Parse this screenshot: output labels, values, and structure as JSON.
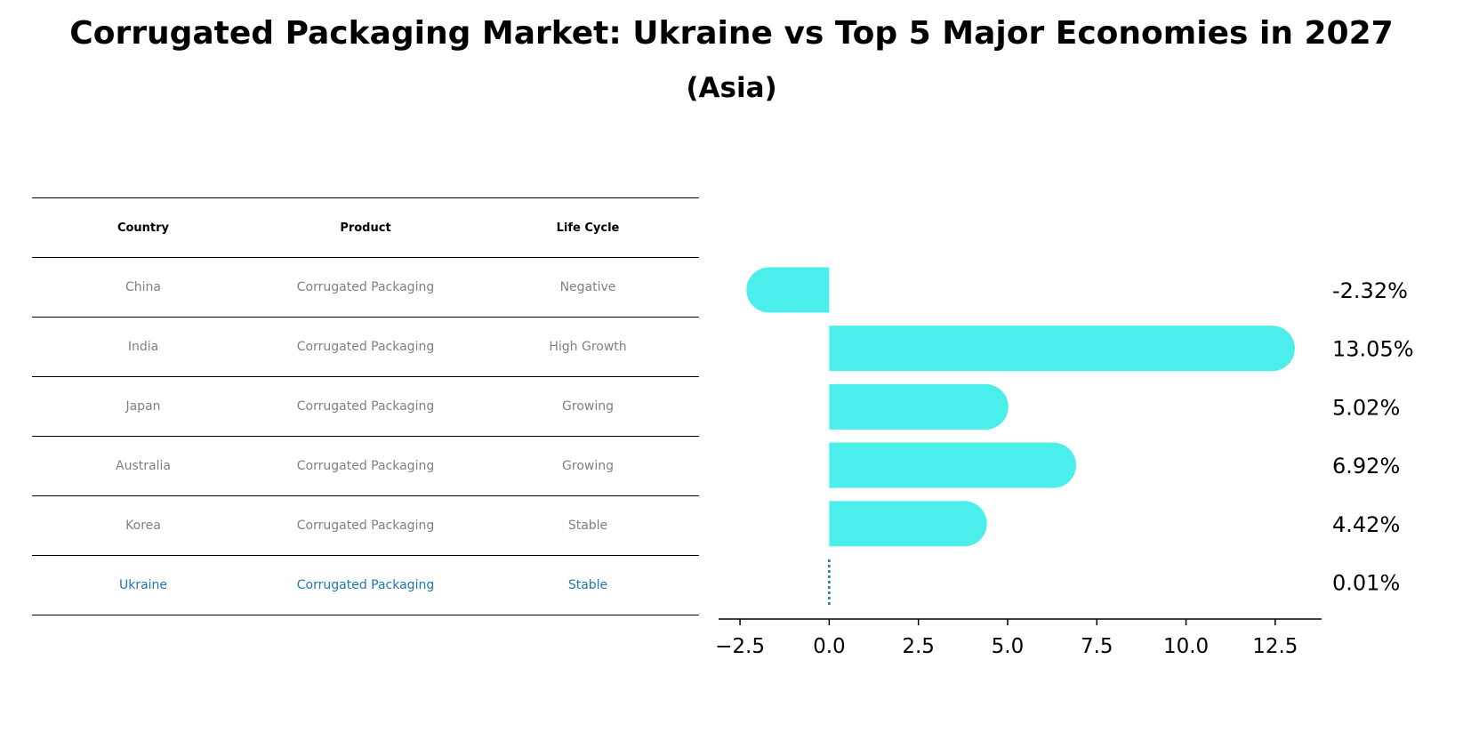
{
  "title": "Corrugated Packaging Market: Ukraine vs Top 5 Major Economies in 2027",
  "subtitle": "(Asia)",
  "colors": {
    "bar": "#4beeea",
    "highlight": "#1f77b4",
    "muted_text": "#808080"
  },
  "table": {
    "headers": [
      "Country",
      "Product",
      "Life Cycle"
    ],
    "rows": [
      [
        "China",
        "Corrugated Packaging",
        "Negative"
      ],
      [
        "India",
        "Corrugated Packaging",
        "High Growth"
      ],
      [
        "Japan",
        "Corrugated Packaging",
        "Growing"
      ],
      [
        "Australia",
        "Corrugated Packaging",
        "Growing"
      ],
      [
        "Korea",
        "Corrugated Packaging",
        "Stable"
      ],
      [
        "Ukraine",
        "Corrugated Packaging",
        "Stable"
      ]
    ]
  },
  "chart_data": {
    "type": "bar",
    "orientation": "horizontal",
    "title": "Corrugated Packaging Market: Ukraine vs Top 5 Major Economies in 2027",
    "subtitle": "(Asia)",
    "categories": [
      "China",
      "India",
      "Japan",
      "Australia",
      "Korea",
      "Ukraine"
    ],
    "values": [
      -2.32,
      13.05,
      5.02,
      6.92,
      4.42,
      0.01
    ],
    "value_labels": [
      "-2.32%",
      "13.05%",
      "5.02%",
      "6.92%",
      "4.42%",
      "0.01%"
    ],
    "xlim": [
      -3.1,
      13.8
    ],
    "xticks": [
      -2.5,
      0.0,
      2.5,
      5.0,
      7.5,
      10.0,
      12.5
    ],
    "xtick_labels": [
      "−2.5",
      "0.0",
      "2.5",
      "5.0",
      "7.5",
      "10.0",
      "12.5"
    ],
    "xlabel": "",
    "ylabel": "",
    "grid": false,
    "highlight_category": "Ukraine"
  }
}
